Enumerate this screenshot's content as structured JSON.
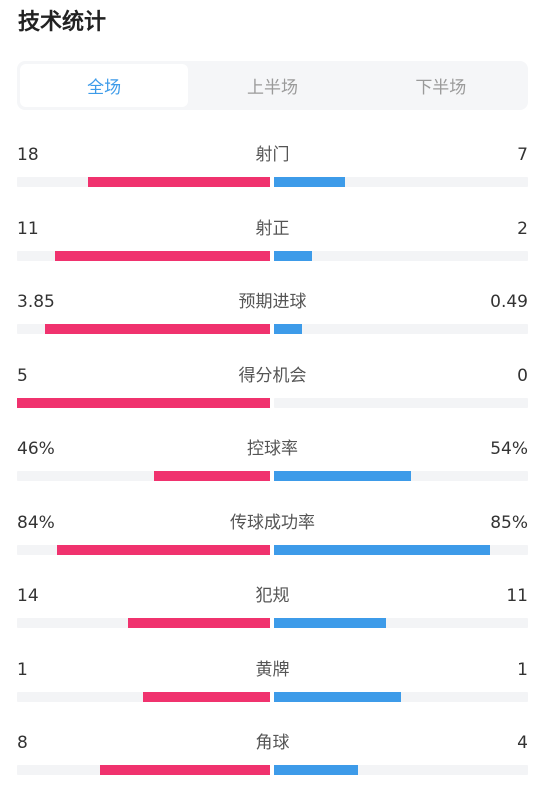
{
  "header": {
    "title": "技术统计"
  },
  "tabs": [
    {
      "label": "全场",
      "active": true
    },
    {
      "label": "上半场",
      "active": false
    },
    {
      "label": "下半场",
      "active": false
    }
  ],
  "colors": {
    "home": "#f0326e",
    "away": "#3d9be9",
    "active_tab": "#3d9be9"
  },
  "stats": [
    {
      "label": "射门",
      "home": "18",
      "away": "7",
      "home_share": 0.72,
      "away_share": 0.28
    },
    {
      "label": "射正",
      "home": "11",
      "away": "2",
      "home_share": 0.85,
      "away_share": 0.15
    },
    {
      "label": "预期进球",
      "home": "3.85",
      "away": "0.49",
      "home_share": 0.89,
      "away_share": 0.11
    },
    {
      "label": "得分机会",
      "home": "5",
      "away": "0",
      "home_share": 1.0,
      "away_share": 0.0
    },
    {
      "label": "控球率",
      "home": "46%",
      "away": "54%",
      "home_share": 0.46,
      "away_share": 0.54
    },
    {
      "label": "传球成功率",
      "home": "84%",
      "away": "85%",
      "home_share": 0.84,
      "away_share": 0.85
    },
    {
      "label": "犯规",
      "home": "14",
      "away": "11",
      "home_share": 0.56,
      "away_share": 0.44
    },
    {
      "label": "黄牌",
      "home": "1",
      "away": "1",
      "home_share": 0.5,
      "away_share": 0.5
    },
    {
      "label": "角球",
      "home": "8",
      "away": "4",
      "home_share": 0.67,
      "away_share": 0.33
    }
  ]
}
